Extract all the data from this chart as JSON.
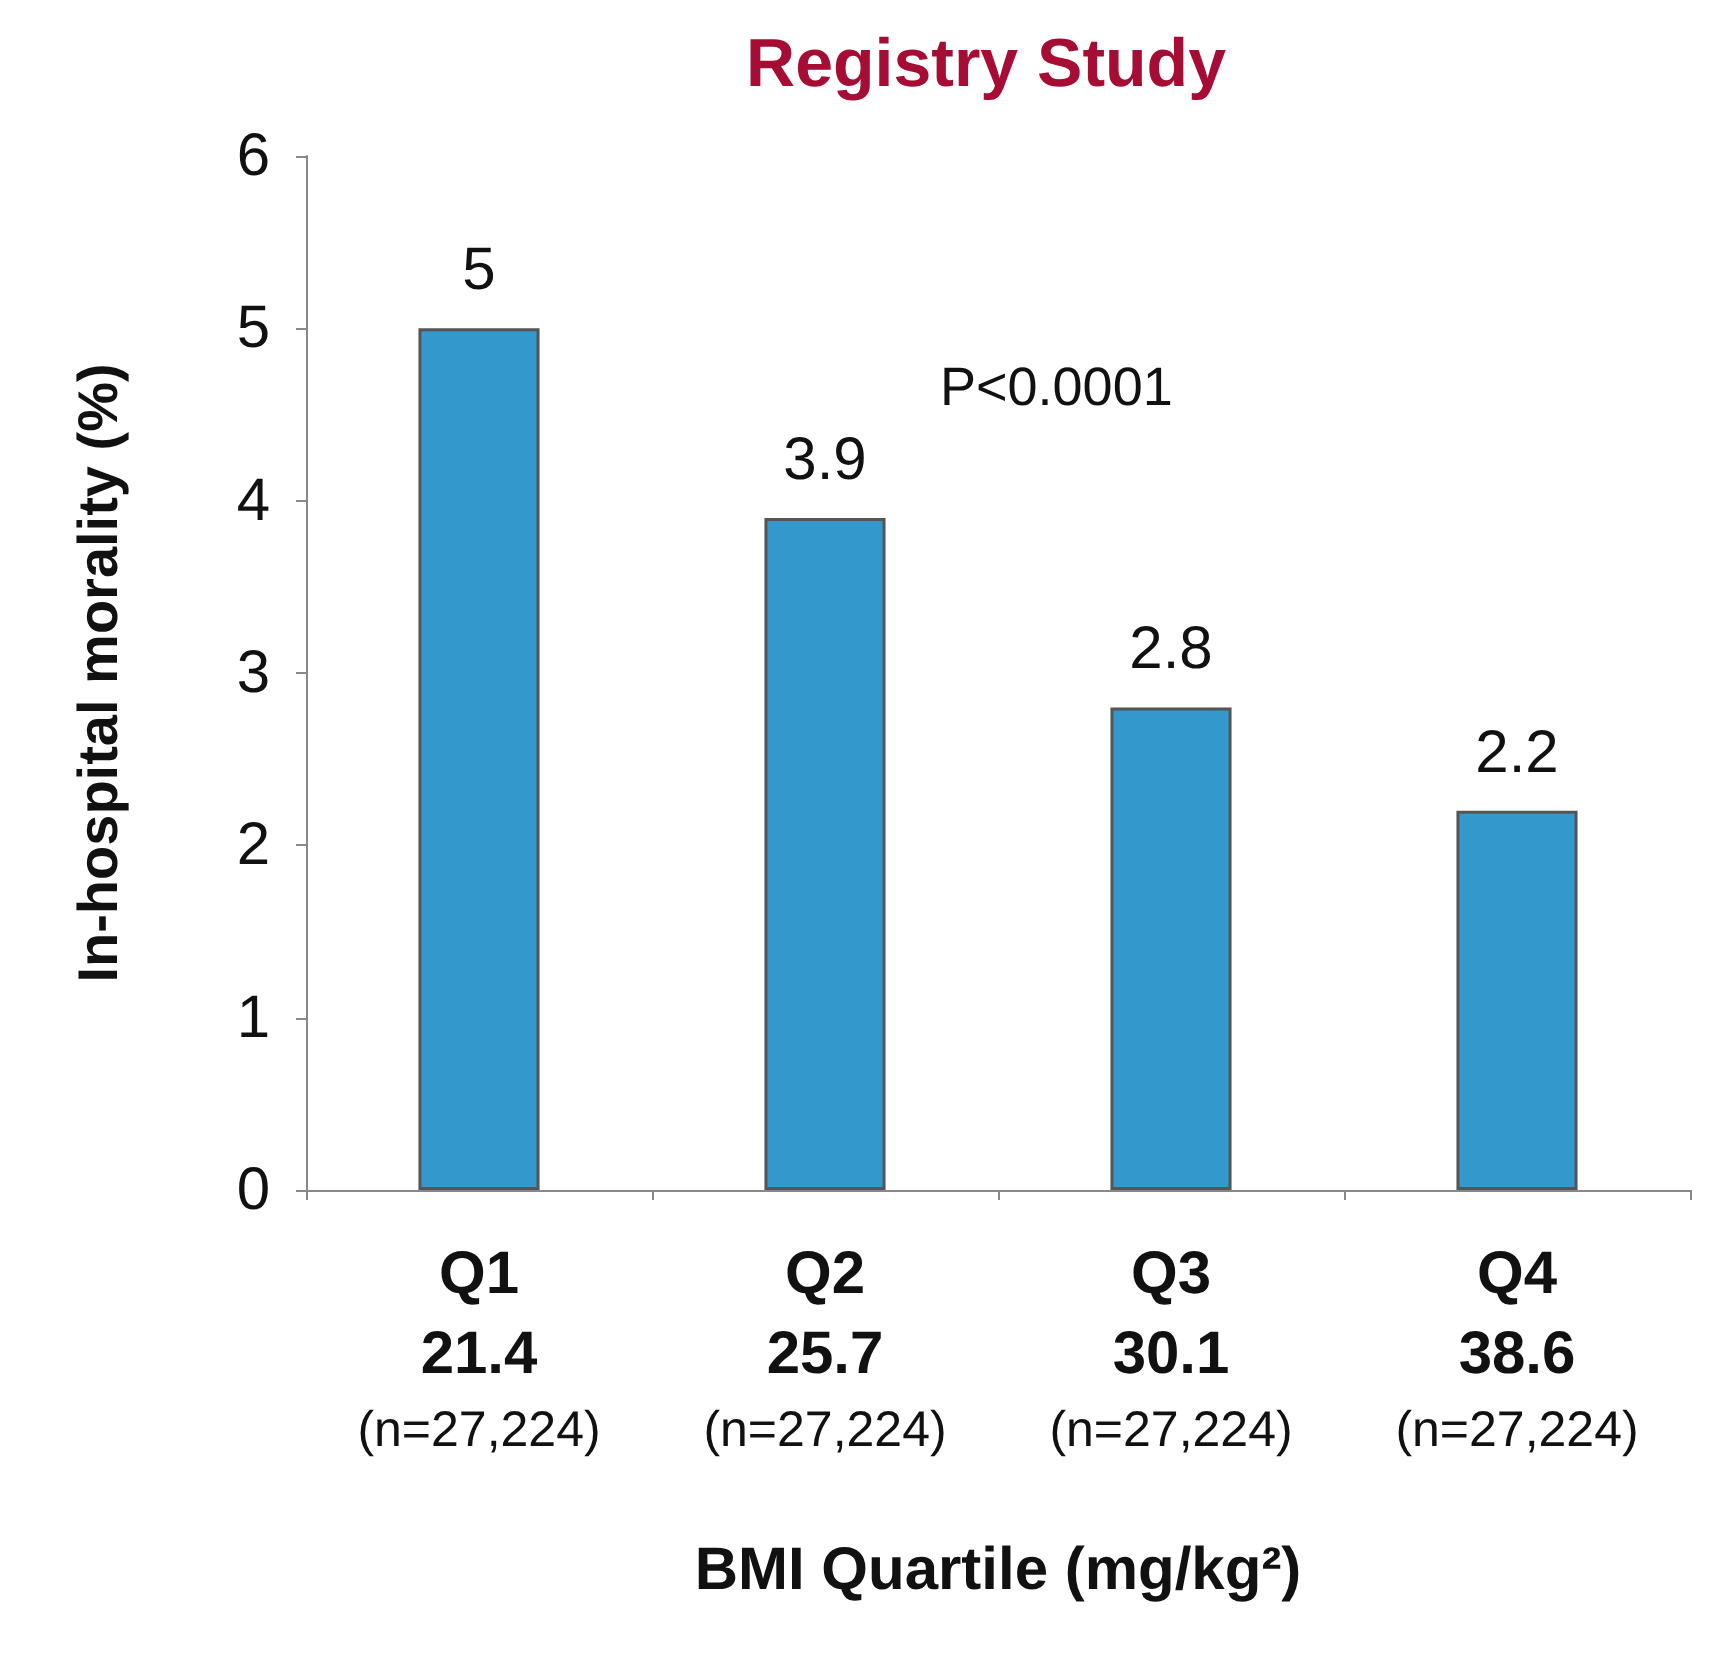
{
  "chart_data": {
    "type": "bar",
    "title": "Registry Study",
    "categories": [
      "Q1\n21.4\n(n=27,224)",
      "Q2\n25.7\n(n=27,224)",
      "Q3\n30.1\n(n=27,224)",
      "Q4\n38.6\n(n=27,224)"
    ],
    "values": [
      5,
      3.9,
      2.8,
      2.2
    ],
    "color": "#3399cc",
    "ylabel": "In-hospital morality (%)",
    "xlabel": "BMI Quartile (mg/kg²)",
    "ylim": [
      0,
      6
    ],
    "yticks": [
      0,
      1,
      2,
      3,
      4,
      5,
      6
    ],
    "data_labels": true,
    "grid": false,
    "annotations": [
      "P<0.0001"
    ]
  }
}
